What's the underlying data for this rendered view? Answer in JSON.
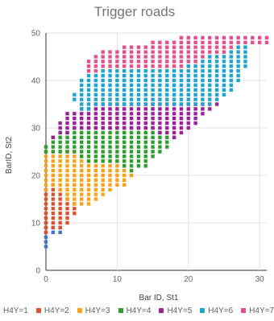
{
  "chart_data": {
    "type": "scatter",
    "title": "Trigger roads",
    "xlabel": "Bar ID, St1",
    "ylabel": "BarID, St2",
    "xlim": [
      0,
      31
    ],
    "ylim": [
      0,
      50
    ],
    "xticks": [
      0,
      10,
      20,
      30
    ],
    "yticks": [
      0,
      10,
      20,
      30,
      40,
      50
    ],
    "grid": true,
    "legend_position": "bottom",
    "series": [
      {
        "name": "H4Y=1",
        "color": "#4472c4",
        "bands": [
          [
            0,
            5,
            10
          ],
          [
            1,
            8,
            9
          ],
          [
            2,
            8,
            9
          ]
        ]
      },
      {
        "name": "H4Y=2",
        "color": "#e0502a",
        "bands": [
          [
            0,
            8,
            17
          ],
          [
            1,
            9,
            18
          ],
          [
            2,
            9,
            17
          ],
          [
            3,
            10,
            15
          ],
          [
            4,
            12,
            14
          ]
        ]
      },
      {
        "name": "H4Y=3",
        "color": "#f7a21b",
        "bands": [
          [
            0,
            17,
            25
          ],
          [
            1,
            18,
            25
          ],
          [
            2,
            17,
            25
          ],
          [
            3,
            15,
            25
          ],
          [
            4,
            14,
            25
          ],
          [
            5,
            14,
            24
          ],
          [
            6,
            14,
            23
          ],
          [
            7,
            15,
            23
          ],
          [
            8,
            16,
            23
          ],
          [
            9,
            17,
            23
          ],
          [
            10,
            18,
            23
          ],
          [
            11,
            18,
            22
          ],
          [
            12,
            20,
            21
          ]
        ]
      },
      {
        "name": "H4Y=4",
        "color": "#2c9e2c",
        "bands": [
          [
            0,
            25,
            26
          ],
          [
            1,
            25,
            28
          ],
          [
            2,
            25,
            29
          ],
          [
            3,
            25,
            29
          ],
          [
            4,
            25,
            30
          ],
          [
            5,
            24,
            30
          ],
          [
            6,
            23,
            30
          ],
          [
            7,
            23,
            30
          ],
          [
            8,
            23,
            30
          ],
          [
            9,
            23,
            30
          ],
          [
            10,
            23,
            30
          ],
          [
            11,
            22,
            30
          ],
          [
            12,
            21,
            30
          ],
          [
            13,
            22,
            30
          ],
          [
            14,
            22,
            30
          ],
          [
            15,
            24,
            30
          ],
          [
            16,
            25,
            29
          ],
          [
            17,
            26,
            29
          ],
          [
            18,
            28,
            28
          ]
        ]
      },
      {
        "name": "H4Y=5",
        "color": "#9c1f9c",
        "bands": [
          [
            1,
            28,
            28
          ],
          [
            2,
            29,
            31
          ],
          [
            3,
            29,
            33
          ],
          [
            4,
            30,
            33
          ],
          [
            5,
            30,
            34
          ],
          [
            6,
            30,
            34
          ],
          [
            7,
            30,
            35
          ],
          [
            8,
            30,
            35
          ],
          [
            9,
            30,
            35
          ],
          [
            10,
            30,
            35
          ],
          [
            11,
            30,
            35
          ],
          [
            12,
            30,
            35
          ],
          [
            13,
            30,
            35
          ],
          [
            14,
            30,
            35
          ],
          [
            15,
            30,
            35
          ],
          [
            16,
            29,
            35
          ],
          [
            17,
            29,
            35
          ],
          [
            18,
            28,
            35
          ],
          [
            19,
            29,
            35
          ],
          [
            20,
            30,
            35
          ],
          [
            21,
            31,
            35
          ],
          [
            22,
            33,
            35
          ],
          [
            23,
            34,
            35
          ],
          [
            24,
            35,
            35
          ]
        ]
      },
      {
        "name": "H4Y=6",
        "color": "#1fa3cf",
        "bands": [
          [
            4,
            36,
            37
          ],
          [
            5,
            34,
            40
          ],
          [
            6,
            34,
            41
          ],
          [
            7,
            35,
            41
          ],
          [
            8,
            35,
            42
          ],
          [
            9,
            35,
            42
          ],
          [
            10,
            35,
            42
          ],
          [
            11,
            35,
            42
          ],
          [
            12,
            35,
            42
          ],
          [
            13,
            35,
            42
          ],
          [
            14,
            35,
            42
          ],
          [
            15,
            35,
            42
          ],
          [
            16,
            35,
            42
          ],
          [
            17,
            35,
            42
          ],
          [
            18,
            35,
            42
          ],
          [
            19,
            35,
            42
          ],
          [
            20,
            35,
            43
          ],
          [
            21,
            35,
            43
          ],
          [
            22,
            35,
            44
          ],
          [
            23,
            35,
            45
          ],
          [
            24,
            36,
            45
          ],
          [
            25,
            37,
            45
          ],
          [
            26,
            38,
            46
          ],
          [
            27,
            40,
            47
          ],
          [
            28,
            43,
            47
          ]
        ]
      },
      {
        "name": "H4Y=7",
        "color": "#e3508a",
        "bands": [
          [
            6,
            42,
            44
          ],
          [
            7,
            42,
            45
          ],
          [
            8,
            43,
            46
          ],
          [
            9,
            43,
            46
          ],
          [
            10,
            43,
            46
          ],
          [
            11,
            43,
            47
          ],
          [
            12,
            43,
            47
          ],
          [
            13,
            43,
            47
          ],
          [
            14,
            43,
            47
          ],
          [
            15,
            43,
            48
          ],
          [
            16,
            43,
            48
          ],
          [
            17,
            43,
            48
          ],
          [
            18,
            43,
            48
          ],
          [
            19,
            43,
            49
          ],
          [
            20,
            44,
            49
          ],
          [
            21,
            44,
            49
          ],
          [
            22,
            45,
            49
          ],
          [
            23,
            46,
            49
          ],
          [
            24,
            46,
            49
          ],
          [
            25,
            46,
            49
          ],
          [
            26,
            47,
            49
          ],
          [
            27,
            48,
            49
          ],
          [
            28,
            48,
            49
          ],
          [
            29,
            48,
            49
          ],
          [
            30,
            48,
            49
          ],
          [
            31,
            48,
            49
          ]
        ]
      }
    ]
  }
}
